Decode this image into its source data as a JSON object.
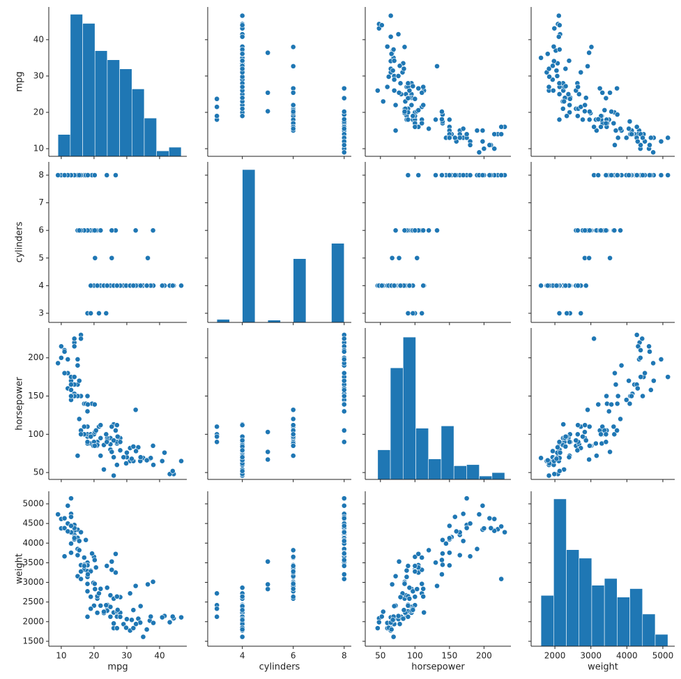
{
  "chart_data": {
    "type": "pairplot",
    "color": "#1f77b4",
    "variables": [
      "mpg",
      "cylinders",
      "horsepower",
      "weight"
    ],
    "xlim": {
      "mpg": [
        6.2,
        48.3
      ],
      "cylinders": [
        2.64,
        8.28
      ],
      "horsepower": [
        28,
        239
      ],
      "weight": [
        1340,
        5330
      ]
    },
    "ylim": {
      "mpg": [
        7.9,
        49
      ],
      "cylinders": [
        2.67,
        8.48
      ],
      "horsepower": [
        41,
        239
      ],
      "weight": [
        1375,
        5320
      ]
    },
    "xticks": {
      "mpg": [
        10,
        20,
        30,
        40
      ],
      "cylinders": [
        4,
        6,
        8
      ],
      "horsepower": [
        50,
        100,
        150,
        200
      ],
      "weight": [
        2000,
        3000,
        4000,
        5000
      ]
    },
    "yticks": {
      "mpg": [
        10,
        20,
        30,
        40
      ],
      "cylinders": [
        3,
        4,
        5,
        6,
        7,
        8
      ],
      "horsepower": [
        50,
        100,
        150,
        200
      ],
      "weight": [
        1500,
        2000,
        2500,
        3000,
        3500,
        4000,
        4500,
        5000
      ]
    },
    "histograms": {
      "mpg": {
        "bins": [
          9,
          12.76,
          16.52,
          20.28,
          24.04,
          27.8,
          31.56,
          35.32,
          39.08,
          42.84,
          46.6
        ],
        "counts": [
          12,
          78,
          73,
          58,
          53,
          48,
          37,
          21,
          3,
          5
        ],
        "ylim": [
          0,
          82
        ]
      },
      "cylinders": {
        "bins": [
          3,
          3.5,
          4,
          4.5,
          5,
          5.5,
          6,
          6.5,
          7,
          7.5,
          8
        ],
        "counts": [
          4,
          0,
          199,
          0,
          3,
          0,
          83,
          0,
          0,
          103
        ],
        "ylim": [
          0,
          209
        ]
      },
      "horsepower": {
        "bins": [
          46,
          64.4,
          82.8,
          101.2,
          119.6,
          138,
          156.4,
          174.8,
          193.2,
          211.6,
          230
        ],
        "counts": [
          26,
          98,
          125,
          45,
          18,
          47,
          12,
          13,
          3,
          6
        ],
        "ylim": [
          0,
          133
        ]
      },
      "weight": {
        "bins": [
          1613,
          1965.7,
          2318.4,
          2671.1,
          3023.8,
          3376.5,
          3729.2,
          4081.9,
          4434.6,
          4787.3,
          5140
        ],
        "counts": [
          30,
          87,
          57,
          52,
          36,
          40,
          29,
          34,
          19,
          7
        ],
        "ylim": [
          0,
          91.5
        ]
      }
    },
    "rows": [
      [
        18,
        8,
        130,
        3504
      ],
      [
        15,
        8,
        165,
        3693
      ],
      [
        18,
        8,
        150,
        3436
      ],
      [
        16,
        8,
        150,
        3433
      ],
      [
        17,
        8,
        140,
        3449
      ],
      [
        15,
        8,
        198,
        4341
      ],
      [
        14,
        8,
        220,
        4354
      ],
      [
        14,
        8,
        215,
        4312
      ],
      [
        14,
        8,
        225,
        4425
      ],
      [
        15,
        8,
        190,
        3850
      ],
      [
        24,
        4,
        95,
        2372
      ],
      [
        22,
        6,
        95,
        2833
      ],
      [
        18,
        6,
        97,
        2774
      ],
      [
        21,
        6,
        85,
        2587
      ],
      [
        27,
        4,
        88,
        2130
      ],
      [
        26,
        4,
        46,
        1835
      ],
      [
        25,
        4,
        87,
        2672
      ],
      [
        24,
        4,
        90,
        2430
      ],
      [
        25,
        4,
        95,
        2375
      ],
      [
        26,
        4,
        113,
        2234
      ],
      [
        21,
        6,
        90,
        2648
      ],
      [
        10,
        8,
        215,
        4615
      ],
      [
        10,
        8,
        200,
        4376
      ],
      [
        11,
        8,
        210,
        4382
      ],
      [
        9,
        8,
        193,
        4732
      ],
      [
        27,
        4,
        90,
        2264
      ],
      [
        28,
        4,
        95,
        2228
      ],
      [
        19,
        6,
        100,
        2634
      ],
      [
        16,
        6,
        105,
        3439
      ],
      [
        17,
        6,
        100,
        3329
      ],
      [
        19,
        6,
        88,
        3302
      ],
      [
        18,
        6,
        100,
        3288
      ],
      [
        14,
        8,
        165,
        4209
      ],
      [
        14,
        8,
        175,
        4464
      ],
      [
        14,
        8,
        153,
        4154
      ],
      [
        14,
        8,
        150,
        4096
      ],
      [
        12,
        8,
        180,
        4499
      ],
      [
        13,
        8,
        170,
        4746
      ],
      [
        13,
        8,
        175,
        5140
      ],
      [
        18,
        6,
        110,
        2962
      ],
      [
        22,
        4,
        72,
        2408
      ],
      [
        19,
        6,
        100,
        3282
      ],
      [
        18,
        6,
        88,
        3139
      ],
      [
        23,
        4,
        86,
        2220
      ],
      [
        28,
        4,
        90,
        2123
      ],
      [
        30,
        4,
        70,
        2074
      ],
      [
        30,
        4,
        76,
        2065
      ],
      [
        31,
        4,
        65,
        1773
      ],
      [
        35,
        4,
        69,
        1613
      ],
      [
        27,
        4,
        60,
        1834
      ],
      [
        26,
        4,
        70,
        1955
      ],
      [
        24,
        4,
        95,
        2278
      ],
      [
        25,
        4,
        80,
        2126
      ],
      [
        23,
        4,
        54,
        2254
      ],
      [
        20,
        4,
        90,
        2408
      ],
      [
        21,
        4,
        86,
        2226
      ],
      [
        13,
        8,
        165,
        4274
      ],
      [
        14,
        8,
        175,
        4385
      ],
      [
        15,
        8,
        150,
        4135
      ],
      [
        14,
        8,
        150,
        4129
      ],
      [
        17,
        6,
        110,
        3632
      ],
      [
        11,
        8,
        180,
        3664
      ],
      [
        13,
        8,
        145,
        3988
      ],
      [
        12,
        8,
        160,
        4300
      ],
      [
        13,
        8,
        150,
        3755
      ],
      [
        19,
        4,
        97,
        2330
      ],
      [
        15,
        6,
        72,
        3158
      ],
      [
        13,
        8,
        158,
        4668
      ],
      [
        13,
        8,
        150,
        4440
      ],
      [
        20,
        6,
        100,
        3651
      ],
      [
        23.7,
        3,
        100,
        2420
      ],
      [
        21.5,
        3,
        110,
        2720
      ],
      [
        18,
        3,
        90,
        2124
      ],
      [
        19,
        3,
        97,
        2330
      ],
      [
        20.3,
        5,
        103,
        2830
      ],
      [
        25.4,
        5,
        77,
        3530
      ],
      [
        36.4,
        5,
        67,
        2950
      ],
      [
        29,
        4,
        70,
        1937
      ],
      [
        32,
        4,
        65,
        1836
      ],
      [
        36,
        4,
        66,
        1800
      ],
      [
        37,
        4,
        68,
        2025
      ],
      [
        44.3,
        4,
        48,
        2085
      ],
      [
        43.1,
        4,
        48,
        1985
      ],
      [
        46.6,
        4,
        65,
        2110
      ],
      [
        44,
        4,
        52,
        2130
      ],
      [
        41.5,
        4,
        76,
        2144
      ],
      [
        38.1,
        4,
        60,
        1968
      ],
      [
        40.8,
        4,
        65,
        2110
      ],
      [
        37.3,
        4,
        69,
        2130
      ],
      [
        33.5,
        4,
        83,
        2075
      ],
      [
        34.1,
        4,
        65,
        1975
      ],
      [
        32.8,
        4,
        78,
        1940
      ],
      [
        31.5,
        4,
        68,
        2045
      ],
      [
        29.8,
        4,
        62,
        1845
      ],
      [
        36.1,
        4,
        66,
        1800
      ],
      [
        27.2,
        4,
        97,
        2300
      ],
      [
        34.2,
        4,
        70,
        2395
      ],
      [
        31,
        4,
        82,
        2720
      ],
      [
        32,
        4,
        84,
        2295
      ],
      [
        28,
        4,
        79,
        2625
      ],
      [
        26,
        4,
        92,
        2585
      ],
      [
        27,
        4,
        112,
        2640
      ],
      [
        24,
        4,
        92,
        2865
      ],
      [
        38,
        6,
        85,
        3015
      ],
      [
        32.7,
        6,
        132,
        2910
      ],
      [
        26.6,
        6,
        105,
        3250
      ],
      [
        25.4,
        6,
        110,
        3320
      ],
      [
        22,
        6,
        112,
        2835
      ],
      [
        20.6,
        6,
        105,
        3380
      ],
      [
        17,
        6,
        100,
        3420
      ],
      [
        16,
        6,
        100,
        3278
      ],
      [
        15.5,
        6,
        120,
        3820
      ],
      [
        19.8,
        6,
        85,
        2990
      ],
      [
        16,
        8,
        230,
        4278
      ],
      [
        12,
        8,
        198,
        4952
      ],
      [
        11,
        8,
        208,
        4633
      ],
      [
        16,
        8,
        225,
        3086
      ],
      [
        26.6,
        8,
        105,
        3725
      ],
      [
        23.9,
        8,
        90,
        3420
      ],
      [
        20.2,
        6,
        85,
        2965
      ],
      [
        19.4,
        8,
        140,
        3735
      ],
      [
        17.5,
        8,
        140,
        4080
      ],
      [
        15.5,
        8,
        170,
        4054
      ],
      [
        18.1,
        8,
        139,
        3205
      ],
      [
        20.2,
        8,
        139,
        3570
      ]
    ]
  }
}
